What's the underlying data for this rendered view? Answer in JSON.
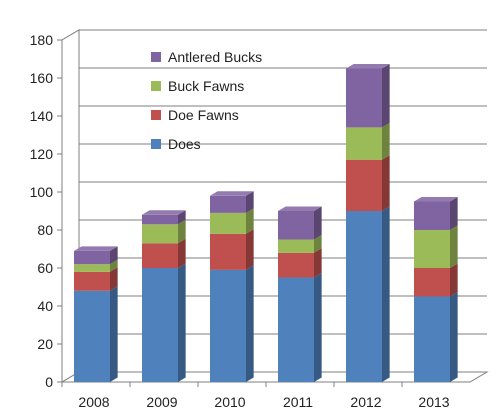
{
  "chart_data": {
    "type": "bar",
    "stacked": true,
    "three_d": true,
    "categories": [
      "2008",
      "2009",
      "2010",
      "2011",
      "2012",
      "2013"
    ],
    "series": [
      {
        "name": "Does",
        "color": "#4F81BD",
        "values": [
          48,
          60,
          59,
          55,
          90,
          45
        ]
      },
      {
        "name": "Doe Fawns",
        "color": "#C0504D",
        "values": [
          10,
          13,
          19,
          13,
          27,
          15
        ]
      },
      {
        "name": "Buck Fawns",
        "color": "#9BBB59",
        "values": [
          4,
          10,
          11,
          7,
          17,
          20
        ]
      },
      {
        "name": "Antlered Bucks",
        "color": "#8064A2",
        "values": [
          7,
          5,
          9,
          15,
          31,
          15
        ]
      }
    ],
    "legend_order": [
      "Antlered Bucks",
      "Buck Fawns",
      "Doe Fawns",
      "Does"
    ],
    "ylim": [
      0,
      180
    ],
    "yticks": [
      "0",
      "20",
      "40",
      "60",
      "80",
      "100",
      "120",
      "140",
      "160",
      "180"
    ],
    "grid": true,
    "legend_position": "top-left",
    "title": "",
    "xlabel": "",
    "ylabel": ""
  }
}
